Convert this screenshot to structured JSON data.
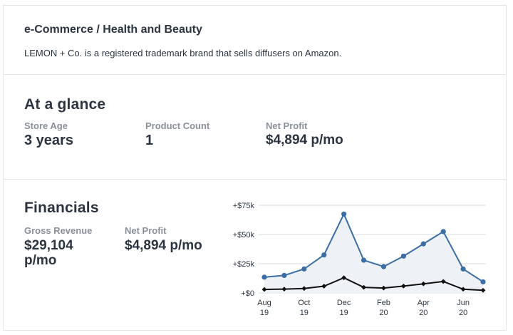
{
  "header": {
    "category": "e-Commerce / Health and Beauty",
    "description": "LEMON + Co. is a registered trademark brand that sells diffusers on Amazon."
  },
  "glance": {
    "title": "At a glance",
    "store_age_label": "Store Age",
    "store_age_value": "3 years",
    "product_count_label": "Product Count",
    "product_count_value": "1",
    "net_profit_label": "Net Profit",
    "net_profit_value": "$4,894 p/mo"
  },
  "financials": {
    "title": "Financials",
    "gross_revenue_label": "Gross Revenue",
    "gross_revenue_value_line1": "$29,104",
    "gross_revenue_value_line2": "p/mo",
    "net_profit_label": "Net Profit",
    "net_profit_value": "$4,894 p/mo"
  },
  "colors": {
    "revenue_line": "#3a6ea5",
    "revenue_fill": "#eef2f7",
    "profit_line": "#111111",
    "grid": "#d5d8dc"
  },
  "chart_data": {
    "type": "line",
    "x": [
      "Aug 19",
      "Sep 19",
      "Oct 19",
      "Nov 19",
      "Dec 19",
      "Jan 20",
      "Feb 20",
      "Mar 20",
      "Apr 20",
      "May 20",
      "Jun 20",
      "Jul 20"
    ],
    "x_tick_labels": [
      {
        "line1": "Aug",
        "line2": "19",
        "index": 0
      },
      {
        "line1": "Oct",
        "line2": "19",
        "index": 2
      },
      {
        "line1": "Dec",
        "line2": "19",
        "index": 4
      },
      {
        "line1": "Feb",
        "line2": "20",
        "index": 6
      },
      {
        "line1": "Apr",
        "line2": "20",
        "index": 8
      },
      {
        "line1": "Jun",
        "line2": "20",
        "index": 10
      }
    ],
    "y_ticks": [
      {
        "label": "+$0",
        "value": 0
      },
      {
        "label": "+$25k",
        "value": 25000
      },
      {
        "label": "+$50k",
        "value": 50000
      },
      {
        "label": "+$75k",
        "value": 75000
      }
    ],
    "ylim": [
      0,
      75000
    ],
    "series": [
      {
        "key": "revenue",
        "values": [
          13500,
          15000,
          20500,
          32500,
          67500,
          28000,
          22500,
          31500,
          42000,
          52500,
          20500,
          9500
        ]
      },
      {
        "key": "profit",
        "values": [
          3000,
          3300,
          3800,
          5800,
          13000,
          4800,
          4200,
          5900,
          7800,
          9800,
          3200,
          2300
        ]
      }
    ],
    "grid": true,
    "legend": "none"
  }
}
